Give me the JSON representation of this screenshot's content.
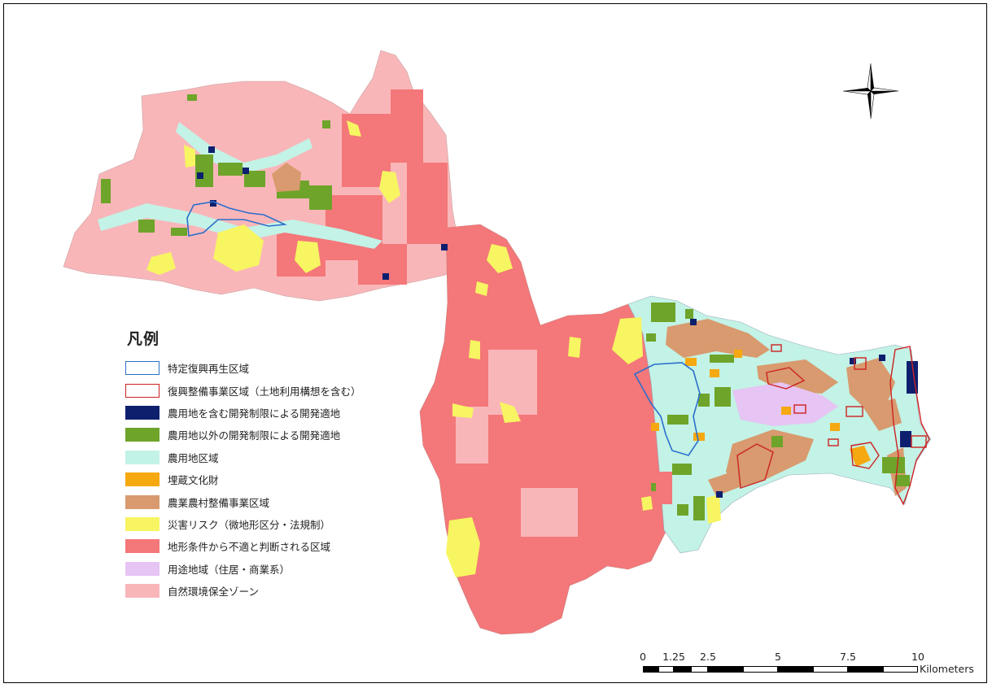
{
  "legend": {
    "title": "凡例",
    "items": [
      {
        "label": "特定復興再生区域",
        "fill": "#ffffff",
        "stroke": "#2b6fcc"
      },
      {
        "label": "復興整備事業区域（土地利用構想を含む）",
        "fill": "#ffffff",
        "stroke": "#cc2222"
      },
      {
        "label": "農用地を含む開発制限による開発適地",
        "fill": "#0e1f6e",
        "stroke": "#0e1f6e"
      },
      {
        "label": "農用地以外の開発制限による開発適地",
        "fill": "#6ea42a",
        "stroke": "#6ea42a"
      },
      {
        "label": "農用地区域",
        "fill": "#c3f2e6",
        "stroke": "#c3f2e6"
      },
      {
        "label": "埋蔵文化財",
        "fill": "#f5a80f",
        "stroke": "#f5a80f"
      },
      {
        "label": "農業農村整備事業区域",
        "fill": "#d89a6e",
        "stroke": "#d89a6e"
      },
      {
        "label": "災害リスク（微地形区分・法規制）",
        "fill": "#f7f562",
        "stroke": "#f7f562"
      },
      {
        "label": "地形条件から不適と判断される区域",
        "fill": "#f47779",
        "stroke": "#f47779"
      },
      {
        "label": "用途地域（住居・商業系）",
        "fill": "#e6c4f3",
        "stroke": "#e6c4f3"
      },
      {
        "label": "自然環境保全ゾーン",
        "fill": "#f9b6b9",
        "stroke": "#f9b6b9"
      }
    ]
  },
  "scale": {
    "ticks": [
      "0",
      "1.25",
      "2.5",
      "5",
      "7.5",
      "10"
    ],
    "unit": "Kilometers"
  },
  "north_arrow": {
    "icon": "north-arrow-icon"
  }
}
